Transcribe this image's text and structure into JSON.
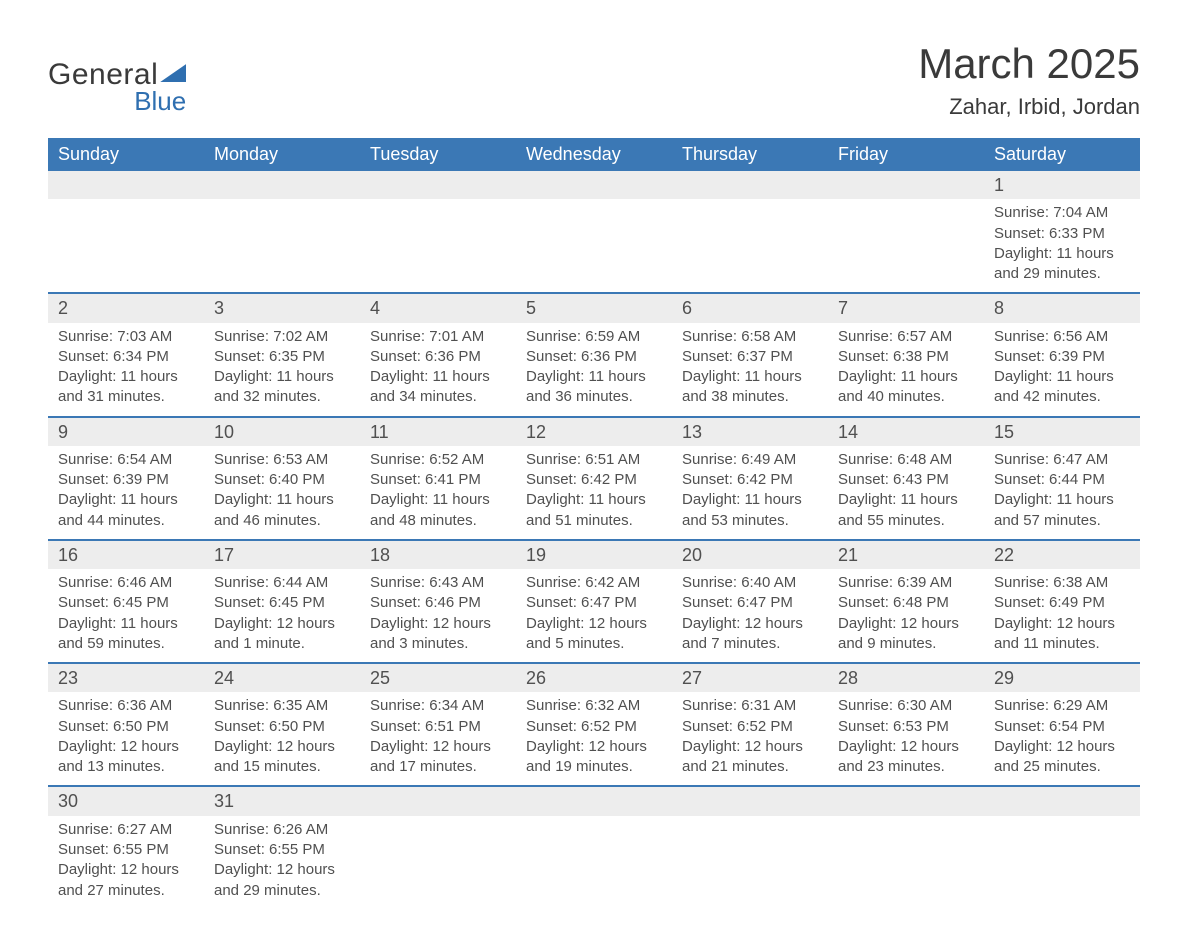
{
  "logo": {
    "word1": "General",
    "word2": "Blue"
  },
  "title": "March 2025",
  "location": "Zahar, Irbid, Jordan",
  "colors": {
    "header_bg": "#3b78b5",
    "header_text": "#ffffff",
    "daynum_bg": "#ededed",
    "rule": "#3b78b5",
    "body_text": "#505050",
    "logo_accent": "#2f6fb0"
  },
  "dayNames": [
    "Sunday",
    "Monday",
    "Tuesday",
    "Wednesday",
    "Thursday",
    "Friday",
    "Saturday"
  ],
  "weeks": [
    [
      null,
      null,
      null,
      null,
      null,
      null,
      {
        "n": "1",
        "sr": "Sunrise: 7:04 AM",
        "ss": "Sunset: 6:33 PM",
        "d1": "Daylight: 11 hours",
        "d2": "and 29 minutes."
      }
    ],
    [
      {
        "n": "2",
        "sr": "Sunrise: 7:03 AM",
        "ss": "Sunset: 6:34 PM",
        "d1": "Daylight: 11 hours",
        "d2": "and 31 minutes."
      },
      {
        "n": "3",
        "sr": "Sunrise: 7:02 AM",
        "ss": "Sunset: 6:35 PM",
        "d1": "Daylight: 11 hours",
        "d2": "and 32 minutes."
      },
      {
        "n": "4",
        "sr": "Sunrise: 7:01 AM",
        "ss": "Sunset: 6:36 PM",
        "d1": "Daylight: 11 hours",
        "d2": "and 34 minutes."
      },
      {
        "n": "5",
        "sr": "Sunrise: 6:59 AM",
        "ss": "Sunset: 6:36 PM",
        "d1": "Daylight: 11 hours",
        "d2": "and 36 minutes."
      },
      {
        "n": "6",
        "sr": "Sunrise: 6:58 AM",
        "ss": "Sunset: 6:37 PM",
        "d1": "Daylight: 11 hours",
        "d2": "and 38 minutes."
      },
      {
        "n": "7",
        "sr": "Sunrise: 6:57 AM",
        "ss": "Sunset: 6:38 PM",
        "d1": "Daylight: 11 hours",
        "d2": "and 40 minutes."
      },
      {
        "n": "8",
        "sr": "Sunrise: 6:56 AM",
        "ss": "Sunset: 6:39 PM",
        "d1": "Daylight: 11 hours",
        "d2": "and 42 minutes."
      }
    ],
    [
      {
        "n": "9",
        "sr": "Sunrise: 6:54 AM",
        "ss": "Sunset: 6:39 PM",
        "d1": "Daylight: 11 hours",
        "d2": "and 44 minutes."
      },
      {
        "n": "10",
        "sr": "Sunrise: 6:53 AM",
        "ss": "Sunset: 6:40 PM",
        "d1": "Daylight: 11 hours",
        "d2": "and 46 minutes."
      },
      {
        "n": "11",
        "sr": "Sunrise: 6:52 AM",
        "ss": "Sunset: 6:41 PM",
        "d1": "Daylight: 11 hours",
        "d2": "and 48 minutes."
      },
      {
        "n": "12",
        "sr": "Sunrise: 6:51 AM",
        "ss": "Sunset: 6:42 PM",
        "d1": "Daylight: 11 hours",
        "d2": "and 51 minutes."
      },
      {
        "n": "13",
        "sr": "Sunrise: 6:49 AM",
        "ss": "Sunset: 6:42 PM",
        "d1": "Daylight: 11 hours",
        "d2": "and 53 minutes."
      },
      {
        "n": "14",
        "sr": "Sunrise: 6:48 AM",
        "ss": "Sunset: 6:43 PM",
        "d1": "Daylight: 11 hours",
        "d2": "and 55 minutes."
      },
      {
        "n": "15",
        "sr": "Sunrise: 6:47 AM",
        "ss": "Sunset: 6:44 PM",
        "d1": "Daylight: 11 hours",
        "d2": "and 57 minutes."
      }
    ],
    [
      {
        "n": "16",
        "sr": "Sunrise: 6:46 AM",
        "ss": "Sunset: 6:45 PM",
        "d1": "Daylight: 11 hours",
        "d2": "and 59 minutes."
      },
      {
        "n": "17",
        "sr": "Sunrise: 6:44 AM",
        "ss": "Sunset: 6:45 PM",
        "d1": "Daylight: 12 hours",
        "d2": "and 1 minute."
      },
      {
        "n": "18",
        "sr": "Sunrise: 6:43 AM",
        "ss": "Sunset: 6:46 PM",
        "d1": "Daylight: 12 hours",
        "d2": "and 3 minutes."
      },
      {
        "n": "19",
        "sr": "Sunrise: 6:42 AM",
        "ss": "Sunset: 6:47 PM",
        "d1": "Daylight: 12 hours",
        "d2": "and 5 minutes."
      },
      {
        "n": "20",
        "sr": "Sunrise: 6:40 AM",
        "ss": "Sunset: 6:47 PM",
        "d1": "Daylight: 12 hours",
        "d2": "and 7 minutes."
      },
      {
        "n": "21",
        "sr": "Sunrise: 6:39 AM",
        "ss": "Sunset: 6:48 PM",
        "d1": "Daylight: 12 hours",
        "d2": "and 9 minutes."
      },
      {
        "n": "22",
        "sr": "Sunrise: 6:38 AM",
        "ss": "Sunset: 6:49 PM",
        "d1": "Daylight: 12 hours",
        "d2": "and 11 minutes."
      }
    ],
    [
      {
        "n": "23",
        "sr": "Sunrise: 6:36 AM",
        "ss": "Sunset: 6:50 PM",
        "d1": "Daylight: 12 hours",
        "d2": "and 13 minutes."
      },
      {
        "n": "24",
        "sr": "Sunrise: 6:35 AM",
        "ss": "Sunset: 6:50 PM",
        "d1": "Daylight: 12 hours",
        "d2": "and 15 minutes."
      },
      {
        "n": "25",
        "sr": "Sunrise: 6:34 AM",
        "ss": "Sunset: 6:51 PM",
        "d1": "Daylight: 12 hours",
        "d2": "and 17 minutes."
      },
      {
        "n": "26",
        "sr": "Sunrise: 6:32 AM",
        "ss": "Sunset: 6:52 PM",
        "d1": "Daylight: 12 hours",
        "d2": "and 19 minutes."
      },
      {
        "n": "27",
        "sr": "Sunrise: 6:31 AM",
        "ss": "Sunset: 6:52 PM",
        "d1": "Daylight: 12 hours",
        "d2": "and 21 minutes."
      },
      {
        "n": "28",
        "sr": "Sunrise: 6:30 AM",
        "ss": "Sunset: 6:53 PM",
        "d1": "Daylight: 12 hours",
        "d2": "and 23 minutes."
      },
      {
        "n": "29",
        "sr": "Sunrise: 6:29 AM",
        "ss": "Sunset: 6:54 PM",
        "d1": "Daylight: 12 hours",
        "d2": "and 25 minutes."
      }
    ],
    [
      {
        "n": "30",
        "sr": "Sunrise: 6:27 AM",
        "ss": "Sunset: 6:55 PM",
        "d1": "Daylight: 12 hours",
        "d2": "and 27 minutes."
      },
      {
        "n": "31",
        "sr": "Sunrise: 6:26 AM",
        "ss": "Sunset: 6:55 PM",
        "d1": "Daylight: 12 hours",
        "d2": "and 29 minutes."
      },
      null,
      null,
      null,
      null,
      null
    ]
  ]
}
